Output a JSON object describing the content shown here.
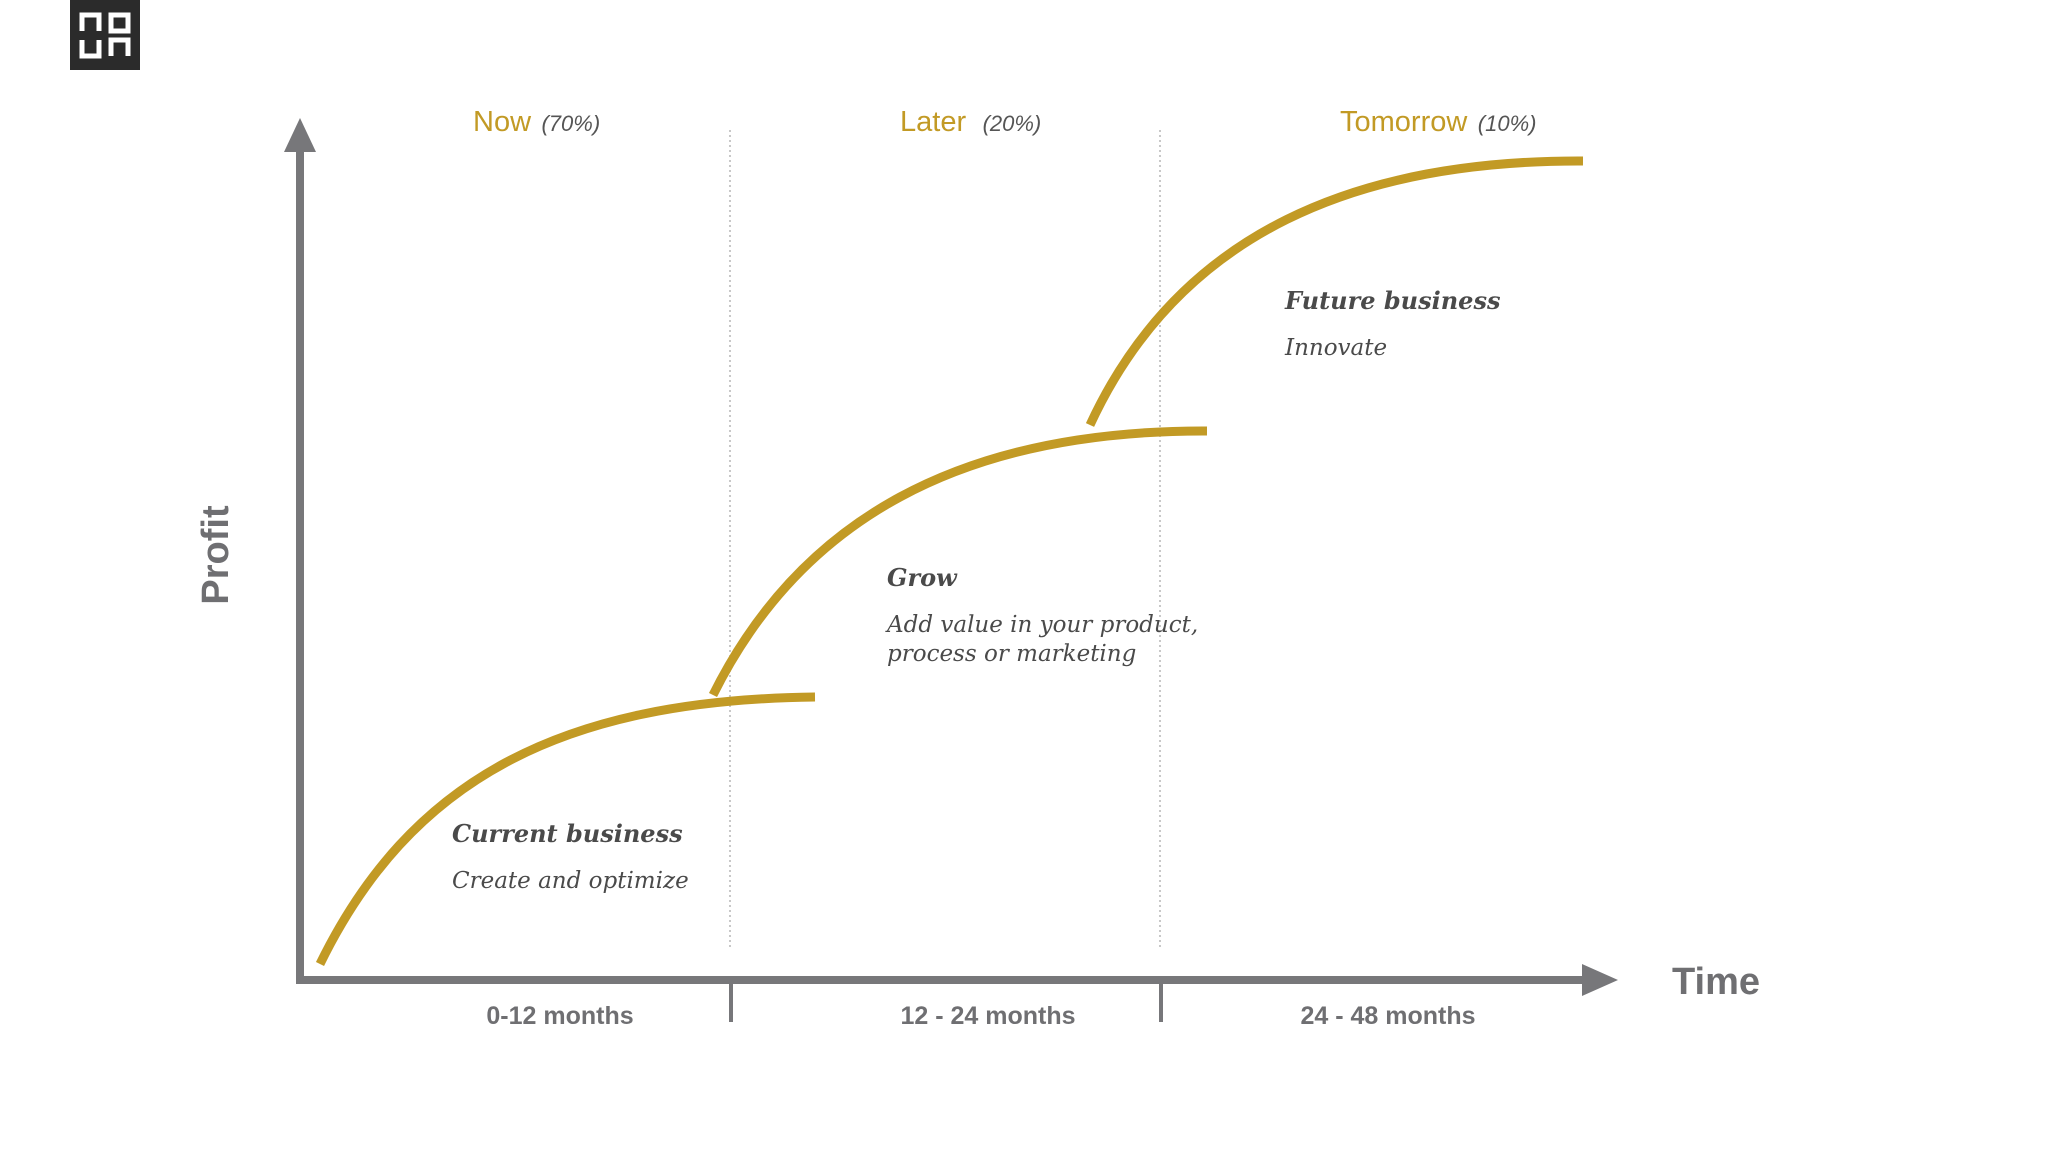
{
  "logo": {
    "icon": "noun-logo-icon"
  },
  "axes": {
    "y_label": "Profit",
    "x_label": "Time"
  },
  "phases": [
    {
      "name": "Now",
      "share": "(70%)",
      "period": "0-12 months"
    },
    {
      "name": "Later",
      "share": "(20%)",
      "period": "12 - 24 months"
    },
    {
      "name": "Tomorrow",
      "share": "(10%)",
      "period": "24 - 48 months"
    }
  ],
  "stages": [
    {
      "title": "Current business",
      "description": [
        "Create and optimize"
      ]
    },
    {
      "title": "Grow",
      "description": [
        "Add value in your product,",
        "process or marketing"
      ]
    },
    {
      "title": "Future business",
      "description": [
        "Innovate"
      ]
    }
  ],
  "colors": {
    "curve": "#c29a25",
    "axis": "#77777a",
    "text": "#4a4a4a"
  }
}
